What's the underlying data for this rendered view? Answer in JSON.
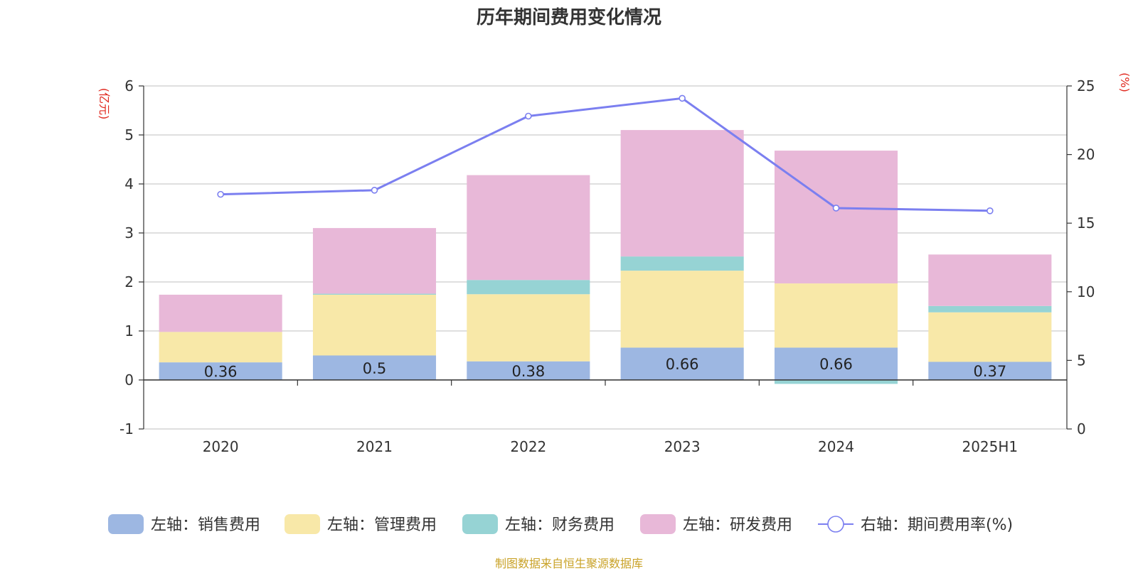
{
  "chart_data": {
    "type": "bar",
    "title": "历年期间费用变化情况",
    "categories": [
      "2020",
      "2021",
      "2022",
      "2023",
      "2024",
      "2025H1"
    ],
    "series": [
      {
        "name": "左轴：销售费用",
        "axis": "left",
        "color": "#9db7e2",
        "values": [
          0.36,
          0.5,
          0.38,
          0.66,
          0.66,
          0.37
        ]
      },
      {
        "name": "左轴：管理费用",
        "axis": "left",
        "color": "#f8e8a8",
        "values": [
          0.62,
          1.24,
          1.37,
          1.57,
          1.31,
          1.01
        ]
      },
      {
        "name": "左轴：财务费用",
        "axis": "left",
        "color": "#96d3d4",
        "values": [
          0.0,
          0.02,
          0.29,
          0.29,
          -0.08,
          0.13
        ]
      },
      {
        "name": "左轴：研发费用",
        "axis": "left",
        "color": "#e8b8d8",
        "values": [
          0.76,
          1.34,
          2.14,
          2.58,
          2.71,
          1.05
        ]
      },
      {
        "name": "右轴：期间费用率(%)",
        "axis": "right",
        "type": "line",
        "color": "#7b7ff0",
        "values": [
          17.1,
          17.4,
          22.8,
          24.1,
          16.1,
          15.9
        ]
      }
    ],
    "data_labels": [
      "0.36",
      "0.5",
      "0.38",
      "0.66",
      "0.66",
      "0.37"
    ],
    "left_axis": {
      "unit": "(亿元)",
      "ylim": [
        -1,
        6
      ],
      "ticks": [
        "-1",
        "0",
        "1",
        "2",
        "3",
        "4",
        "5",
        "6"
      ]
    },
    "right_axis": {
      "unit": "(%)",
      "ylim": [
        0,
        25
      ],
      "ticks": [
        "0",
        "5",
        "10",
        "15",
        "20",
        "25"
      ]
    },
    "grid": true,
    "legend_position": "bottom"
  },
  "source_note": "制图数据来自恒生聚源数据库"
}
